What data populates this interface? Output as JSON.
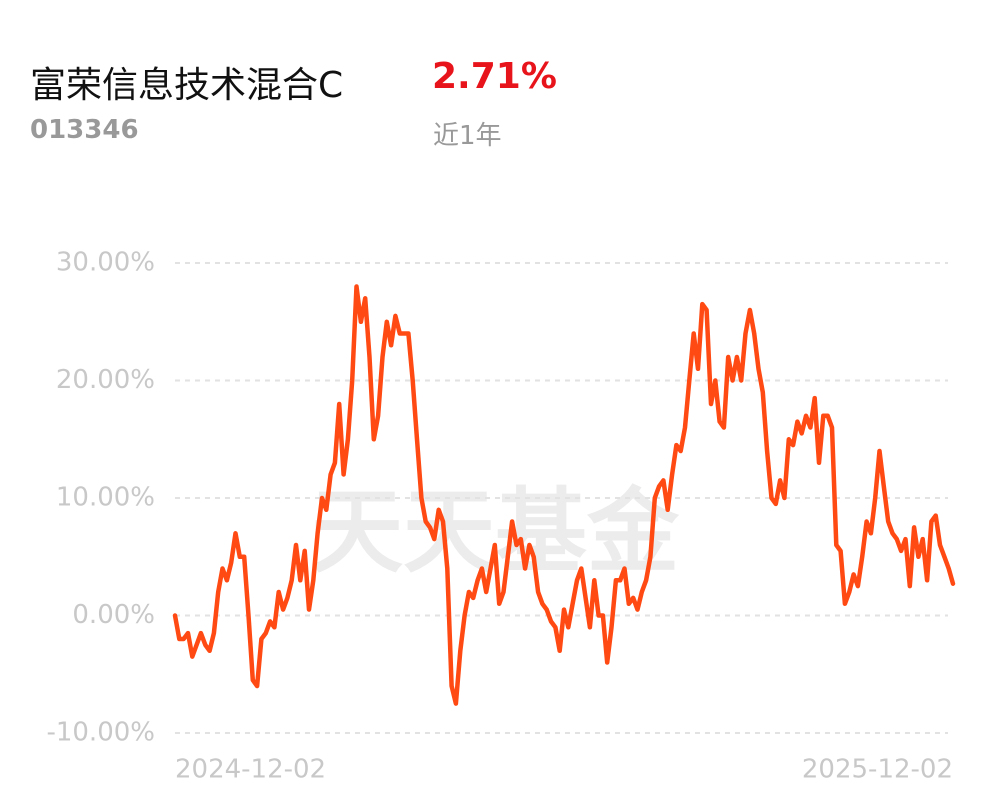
{
  "header": {
    "title": "富荣信息技术混合C",
    "return": "2.71%",
    "code": "013346",
    "period": "近1年"
  },
  "watermark": "天天基金",
  "chart_data": {
    "type": "line",
    "categories": [
      "2024-12-02",
      null,
      null,
      null,
      null,
      null,
      null,
      null,
      null,
      null,
      null,
      null,
      null,
      null,
      null,
      null,
      null,
      null,
      null,
      null,
      null,
      null,
      null,
      null,
      null,
      null,
      null,
      null,
      null,
      null,
      null,
      null,
      null,
      null,
      null,
      null,
      null,
      null,
      null,
      null,
      null,
      null,
      null,
      null,
      null,
      null,
      null,
      null,
      null,
      null,
      null,
      null,
      null,
      null,
      null,
      null,
      null,
      null,
      null,
      null,
      null,
      null,
      null,
      null,
      null,
      null,
      null,
      null,
      null,
      null,
      null,
      null,
      null,
      null,
      null,
      null,
      null,
      null,
      null,
      null,
      null,
      null,
      null,
      null,
      null,
      null,
      null,
      null,
      null,
      null,
      null,
      null,
      null,
      null,
      null,
      null,
      null,
      null,
      null,
      null,
      null,
      null,
      null,
      null,
      null,
      null,
      null,
      null,
      null,
      null,
      null,
      null,
      null,
      null,
      null,
      null,
      null,
      null,
      null,
      null,
      null,
      null,
      null,
      null,
      null,
      null,
      null,
      null,
      null,
      null,
      null,
      null,
      null,
      null,
      null,
      null,
      null,
      null,
      null,
      null,
      null,
      null,
      null,
      null,
      null,
      null,
      null,
      null,
      null,
      null,
      null,
      null,
      null,
      null,
      null,
      null,
      null,
      null,
      null,
      null,
      null,
      null,
      null,
      null,
      null,
      null,
      null,
      null,
      null,
      null,
      null,
      null,
      null,
      null,
      null,
      null,
      null,
      null,
      null,
      null,
      "2025-12-02"
    ],
    "series": [
      {
        "color": "#ff4a14",
        "values": [
          0,
          -2,
          -2,
          -1.5,
          -3.5,
          -2.5,
          -1.5,
          -2.5,
          -3,
          -1.5,
          2,
          4,
          3,
          4.5,
          7,
          5,
          5,
          0,
          -5.5,
          -6,
          -2,
          -1.5,
          -0.5,
          -1,
          2,
          0.5,
          1.5,
          3,
          6,
          3,
          5.5,
          0.5,
          3,
          7,
          10,
          9,
          12,
          13,
          18,
          12,
          15,
          20,
          28,
          25,
          27,
          22,
          15,
          17,
          22,
          25,
          23,
          25.5,
          24,
          24,
          24,
          20,
          15,
          10,
          8,
          7.5,
          6.5,
          9,
          8,
          4,
          -6,
          -7.5,
          -3,
          0,
          2,
          1.5,
          3,
          4,
          2,
          4,
          6,
          1,
          2,
          5,
          8,
          6,
          6.5,
          4,
          6,
          5,
          2,
          1,
          0.5,
          -0.5,
          -1,
          -3,
          0.5,
          -1,
          1,
          3,
          4,
          1.5,
          -1,
          3,
          0,
          0,
          -4,
          -1,
          3,
          3,
          4,
          1,
          1.5,
          0.5,
          2,
          3,
          5,
          10,
          11,
          11.5,
          9,
          12,
          14.5,
          14,
          16,
          20,
          24,
          21,
          26.5,
          26,
          18,
          20,
          16.5,
          16,
          22,
          20,
          22,
          20,
          24,
          26,
          24,
          21,
          19,
          14,
          10,
          9.5,
          11.5,
          10,
          15,
          14.5,
          16.5,
          15.5,
          17,
          16,
          18.5,
          13,
          17,
          17,
          16,
          6,
          5.5,
          1,
          2,
          3.5,
          2.5,
          5,
          8,
          7,
          10,
          14,
          11,
          8,
          7,
          6.5,
          5.5,
          6.5,
          2.5,
          7.5,
          5,
          6.5,
          3,
          8,
          8.5,
          6,
          5,
          4,
          2.71
        ]
      }
    ],
    "ylim": [
      -10,
      30
    ],
    "yticks": [
      {
        "value": -10,
        "label": "-10.00%"
      },
      {
        "value": 0,
        "label": "0.00%"
      },
      {
        "value": 10,
        "label": "10.00%"
      },
      {
        "value": 20,
        "label": "20.00%"
      },
      {
        "value": 30,
        "label": "30.00%"
      }
    ],
    "grid": true
  }
}
